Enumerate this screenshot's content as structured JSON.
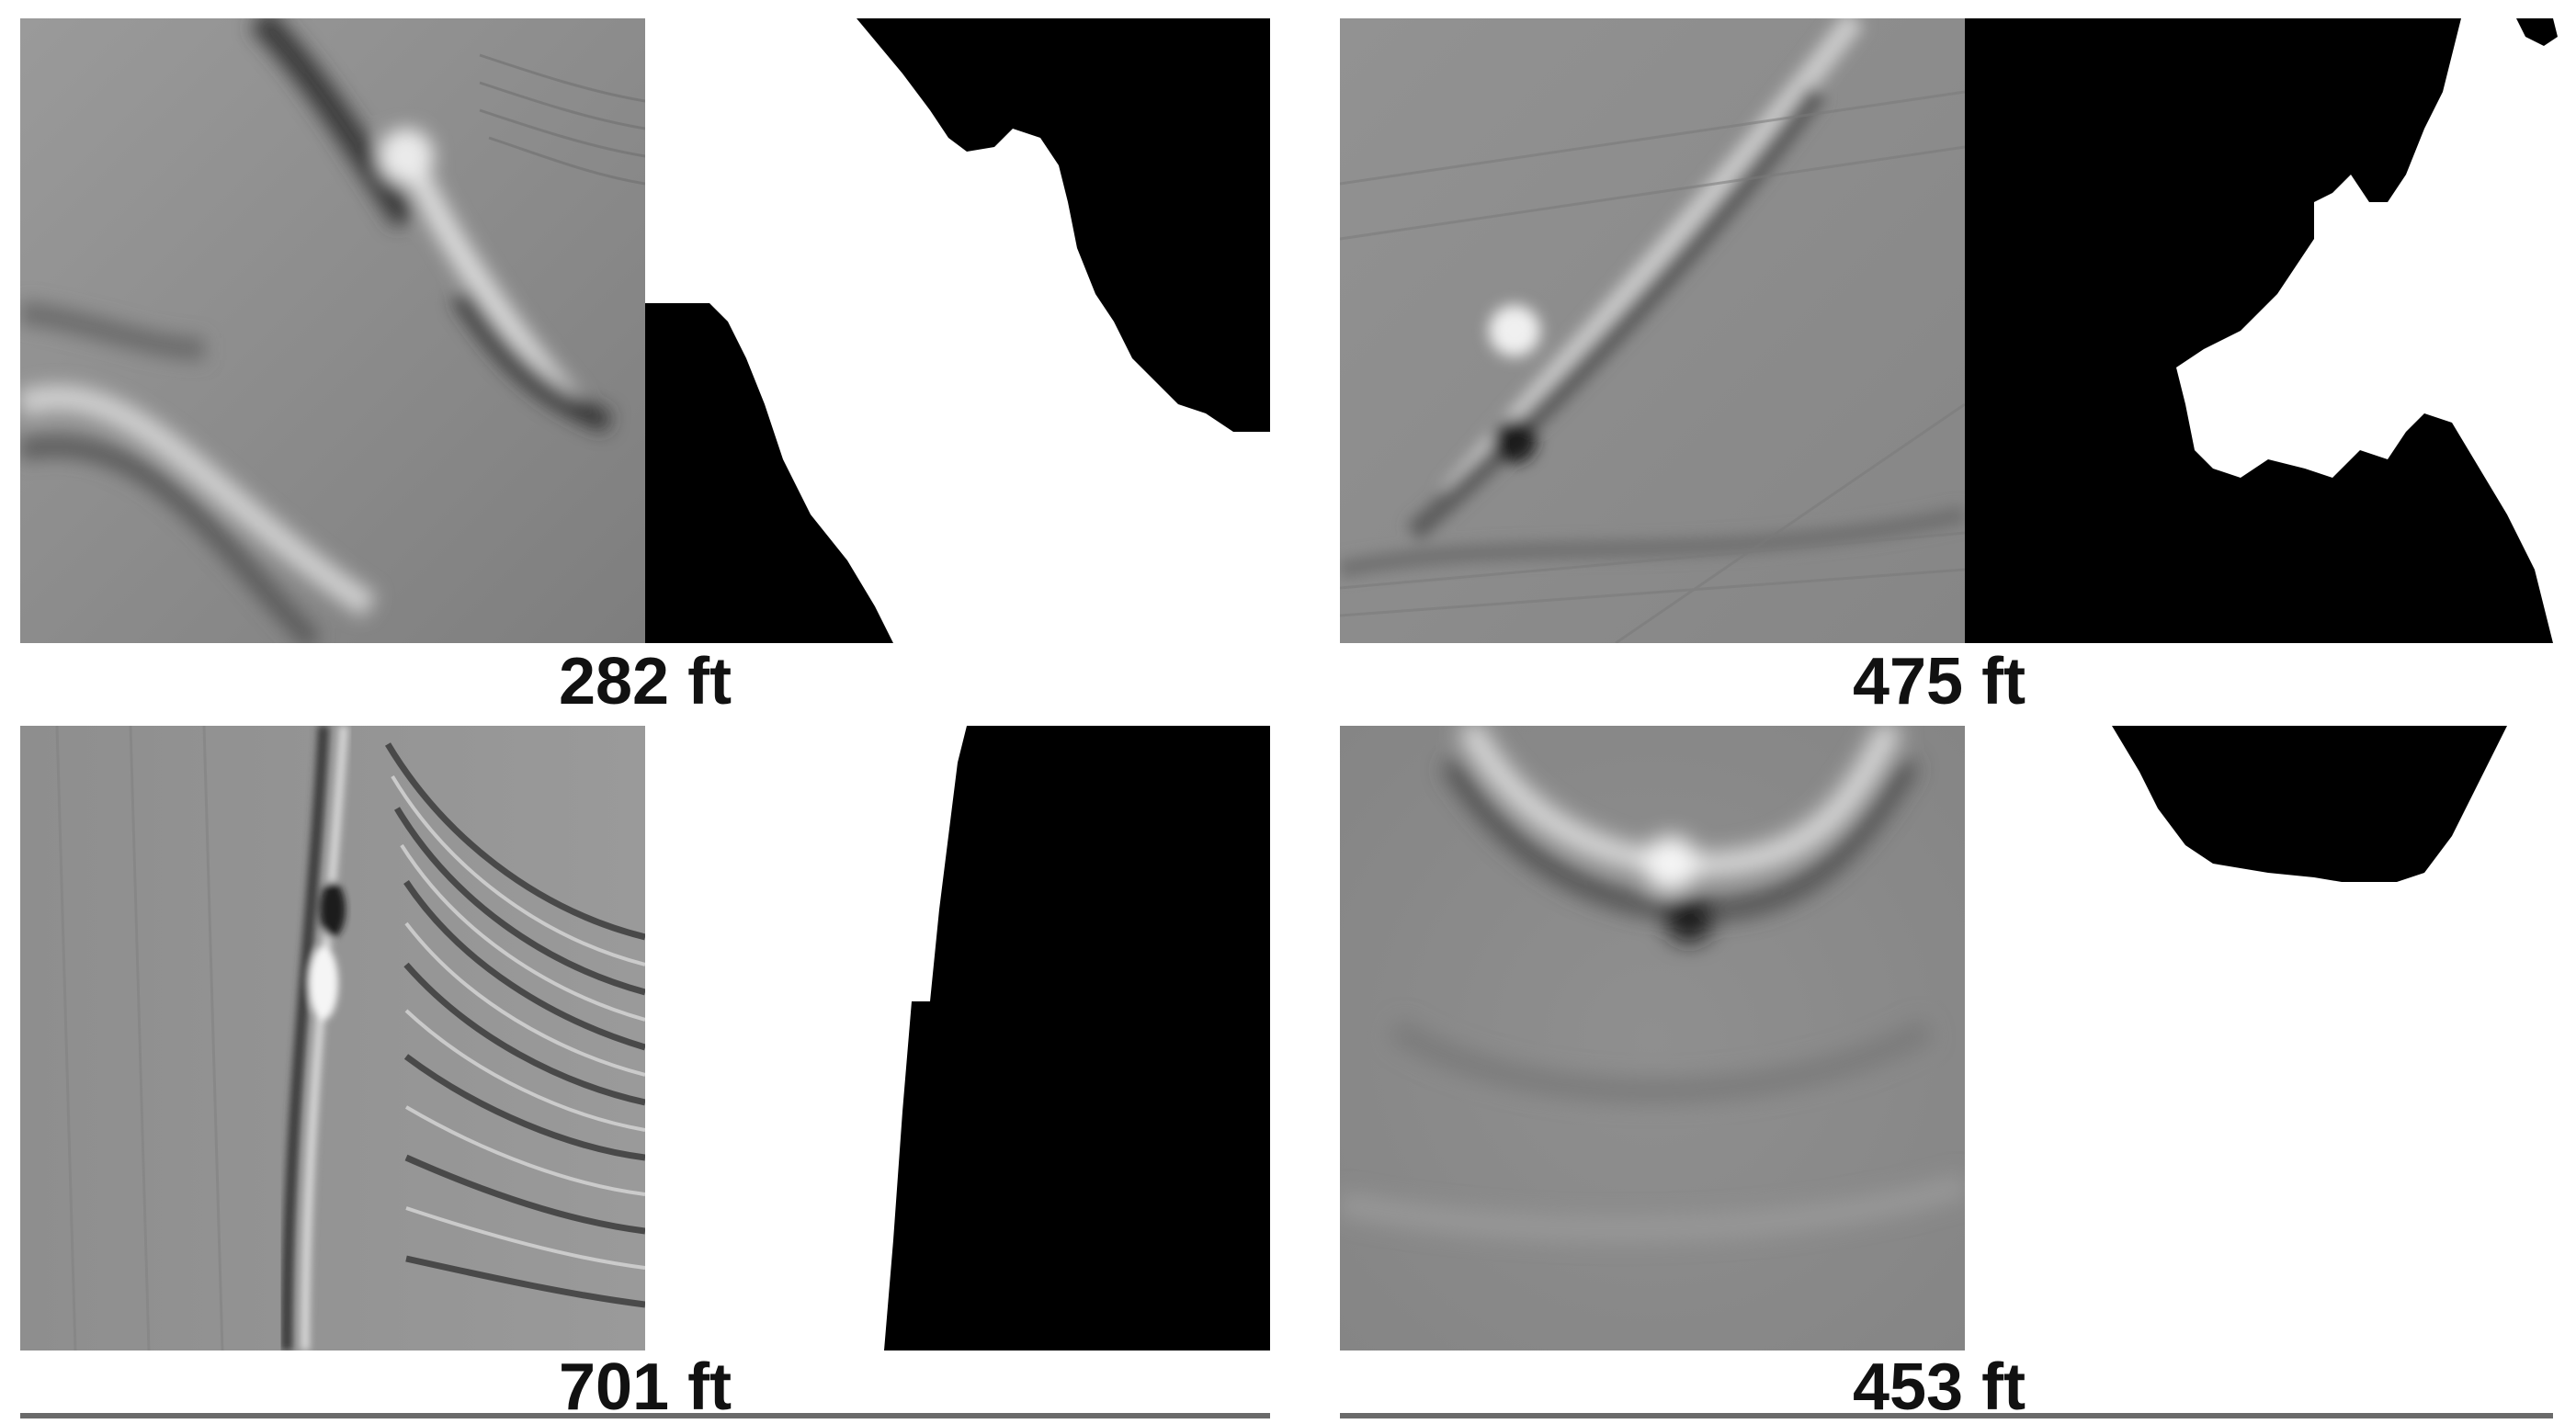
{
  "colors": {
    "background": "#ffffff",
    "mask": "#000000",
    "seismic_base": "#8c8c8c"
  },
  "panels": [
    {
      "label": "282 ft"
    },
    {
      "label": "475 ft"
    },
    {
      "label": "701 ft"
    },
    {
      "label": "453 ft"
    }
  ]
}
